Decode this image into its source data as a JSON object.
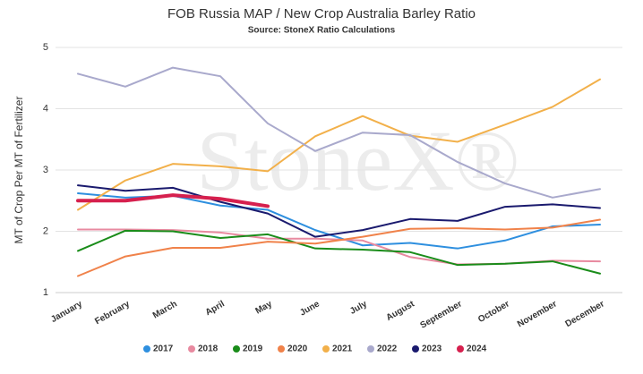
{
  "chart_data": {
    "type": "line",
    "title": "FOB Russia MAP / New Crop Australia Barley Ratio",
    "subtitle": "Source: StoneX Ratio Calculations",
    "y_label": "MT of Crop Per MT of Fertilizer",
    "watermark": "StoneX®",
    "categories": [
      "January",
      "February",
      "March",
      "April",
      "May",
      "June",
      "July",
      "August",
      "September",
      "October",
      "November",
      "December"
    ],
    "ylim": [
      1,
      5
    ],
    "yticks": [
      1,
      2,
      3,
      4,
      5
    ],
    "grid": true,
    "legend": "bottom",
    "series": [
      {
        "name": "2017",
        "color": "#2e8fdf",
        "values": [
          2.62,
          2.55,
          2.58,
          2.42,
          2.35,
          2.02,
          1.77,
          1.81,
          1.72,
          1.85,
          2.08,
          2.11
        ]
      },
      {
        "name": "2018",
        "color": "#e88aa0",
        "values": [
          2.03,
          2.03,
          2.02,
          1.98,
          1.88,
          1.88,
          1.85,
          1.58,
          1.46,
          1.47,
          1.52,
          1.51
        ]
      },
      {
        "name": "2019",
        "color": "#1a8c1a",
        "values": [
          1.68,
          2.01,
          2.0,
          1.89,
          1.95,
          1.72,
          1.7,
          1.66,
          1.45,
          1.47,
          1.51,
          1.31
        ]
      },
      {
        "name": "2020",
        "color": "#f0824a",
        "values": [
          1.27,
          1.59,
          1.73,
          1.73,
          1.83,
          1.8,
          1.91,
          2.04,
          2.05,
          2.03,
          2.06,
          2.19
        ]
      },
      {
        "name": "2021",
        "color": "#f2b04a",
        "values": [
          2.35,
          2.83,
          3.1,
          3.06,
          2.98,
          3.55,
          3.88,
          3.56,
          3.46,
          3.74,
          4.03,
          4.48
        ]
      },
      {
        "name": "2022",
        "color": "#a9a9cc",
        "values": [
          4.57,
          4.36,
          4.67,
          4.53,
          3.76,
          3.31,
          3.61,
          3.57,
          3.13,
          2.78,
          2.55,
          2.69
        ]
      },
      {
        "name": "2023",
        "color": "#1a1a6e",
        "values": [
          2.75,
          2.66,
          2.71,
          2.48,
          2.29,
          1.91,
          2.02,
          2.2,
          2.17,
          2.4,
          2.44,
          2.38
        ]
      },
      {
        "name": "2024",
        "color": "#d6204e",
        "width": 4,
        "values": [
          2.5,
          2.5,
          2.59,
          2.53,
          2.41,
          null,
          null,
          null,
          null,
          null,
          null,
          null
        ]
      }
    ]
  }
}
